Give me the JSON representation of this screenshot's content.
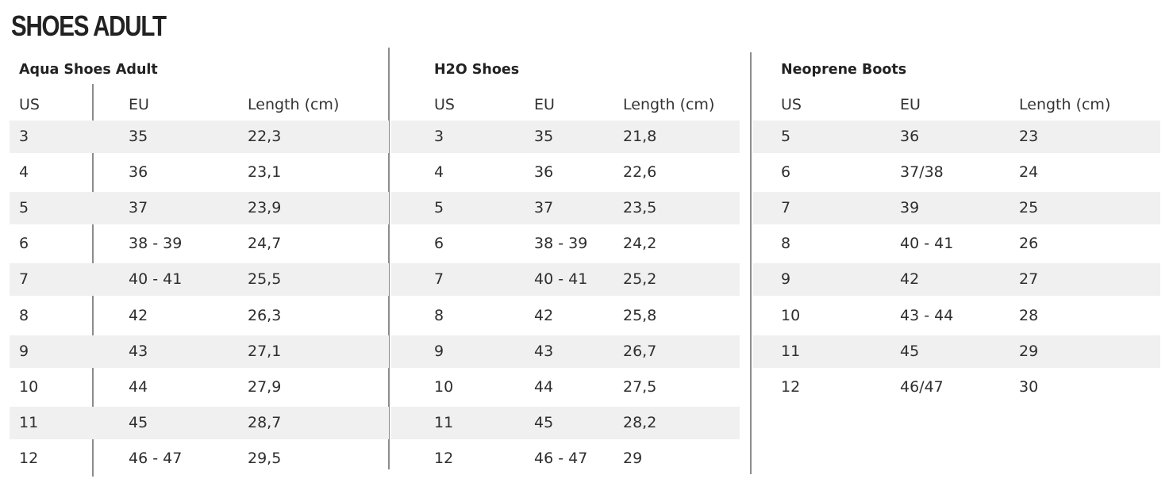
{
  "page_title": "SHOES ADULT",
  "tables": [
    {
      "title": "Aqua Shoes Adult",
      "headers": [
        "US",
        "EU",
        "Length (cm)"
      ],
      "rows": [
        [
          "3",
          "35",
          "22,3"
        ],
        [
          "4",
          "36",
          "23,1"
        ],
        [
          "5",
          "37",
          "23,9"
        ],
        [
          "6",
          "38 - 39",
          "24,7"
        ],
        [
          "7",
          "40 - 41",
          "25,5"
        ],
        [
          "8",
          "42",
          "26,3"
        ],
        [
          "9",
          "43",
          "27,1"
        ],
        [
          "10",
          "44",
          "27,9"
        ],
        [
          "11",
          "45",
          "28,7"
        ],
        [
          "12",
          "46 - 47",
          "29,5"
        ]
      ]
    },
    {
      "title": "H2O Shoes",
      "headers": [
        "US",
        "EU",
        "Length (cm)"
      ],
      "rows": [
        [
          "3",
          "35",
          "21,8"
        ],
        [
          "4",
          "36",
          "22,6"
        ],
        [
          "5",
          "37",
          "23,5"
        ],
        [
          "6",
          "38 - 39",
          "24,2"
        ],
        [
          "7",
          "40 - 41",
          "25,2"
        ],
        [
          "8",
          "42",
          "25,8"
        ],
        [
          "9",
          "43",
          "26,7"
        ],
        [
          "10",
          "44",
          "27,5"
        ],
        [
          "11",
          "45",
          "28,2"
        ],
        [
          "12",
          "46 - 47",
          "29"
        ]
      ]
    },
    {
      "title": "Neoprene Boots",
      "headers": [
        "US",
        "EU",
        "Length (cm)"
      ],
      "rows": [
        [
          "5",
          "36",
          "23"
        ],
        [
          "6",
          "37/38",
          "24"
        ],
        [
          "7",
          "39",
          "25"
        ],
        [
          "8",
          "40 - 41",
          "26"
        ],
        [
          "9",
          "42",
          "27"
        ],
        [
          "10",
          "43 - 44",
          "28"
        ],
        [
          "11",
          "45",
          "29"
        ],
        [
          "12",
          "46/47",
          "30"
        ]
      ]
    }
  ]
}
